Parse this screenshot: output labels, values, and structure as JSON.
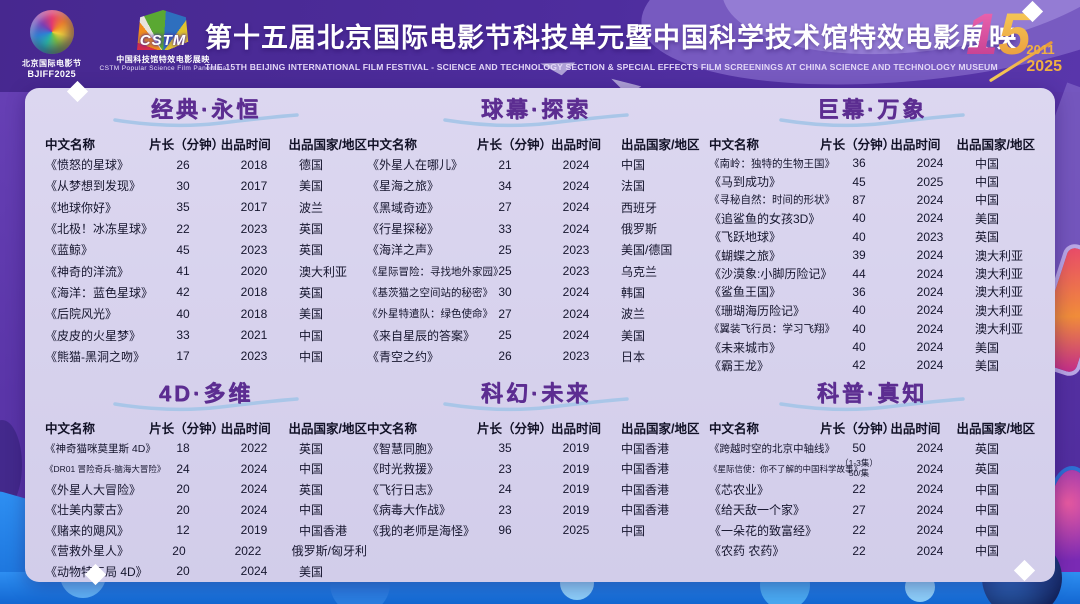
{
  "colors": {
    "background_purple": "#5a35a8",
    "header_purple": "#4e2d9e",
    "panel_lavender": "#d7d2ed",
    "section_title_purple": "#5c2d91",
    "bottom_blue": "#1b82e8",
    "badge_pink": "#d94a9c",
    "badge_gold": "#f0a93e"
  },
  "header": {
    "bjiff_logo": {
      "line1": "北京国际电影节",
      "line2": "BJIFF2025"
    },
    "cstm_logo": {
      "acronym": "CSTM",
      "line1": "中国科技馆特效电影展映",
      "line2": "CSTM Popular Science Film Panorama"
    },
    "title": "第十五届北京国际电影节科技单元暨中国科学技术馆特效电影展映",
    "subtitle": "THE 15TH BEIJING INTERNATIONAL FILM FESTIVAL - SCIENCE AND TECHNOLOGY SECTION & SPECIAL EFFECTS FILM SCREENINGS AT CHINA SCIENCE AND TECHNOLOGY MUSEUM",
    "badge": {
      "digit1": "1",
      "digit2": "5",
      "year_start": "2011",
      "year_end": "2025"
    }
  },
  "columns": [
    "中文名称",
    "片长（分钟）",
    "出品时间",
    "出品国家/地区"
  ],
  "sections": [
    {
      "title": "经典·永恒",
      "rows": [
        [
          "《愤怒的星球》",
          "26",
          "2018",
          "德国"
        ],
        [
          "《从梦想到发现》",
          "30",
          "2017",
          "美国"
        ],
        [
          "《地球你好》",
          "35",
          "2017",
          "波兰"
        ],
        [
          "《北极！冰冻星球》",
          "22",
          "2023",
          "英国"
        ],
        [
          "《蓝鲸》",
          "45",
          "2023",
          "英国"
        ],
        [
          "《神奇的洋流》",
          "41",
          "2020",
          "澳大利亚"
        ],
        [
          "《海洋：蓝色星球》",
          "42",
          "2018",
          "英国"
        ],
        [
          "《后院风光》",
          "40",
          "2018",
          "美国"
        ],
        [
          "《皮皮的火星梦》",
          "33",
          "2021",
          "中国"
        ],
        [
          "《熊猫-黑洞之吻》",
          "17",
          "2023",
          "中国"
        ]
      ]
    },
    {
      "title": "球幕·探索",
      "rows": [
        [
          "《外星人在哪儿》",
          "21",
          "2024",
          "中国"
        ],
        [
          "《星海之旅》",
          "34",
          "2024",
          "法国"
        ],
        [
          "《黑域奇迹》",
          "27",
          "2024",
          "西班牙"
        ],
        [
          "《行星探秘》",
          "33",
          "2024",
          "俄罗斯"
        ],
        [
          "《海洋之声》",
          "25",
          "2023",
          "美国/德国"
        ],
        [
          "《星际冒险：寻找地外家园》",
          "25",
          "2023",
          "乌克兰"
        ],
        [
          "《基茨猫之空间站的秘密》",
          "30",
          "2024",
          "韩国"
        ],
        [
          "《外星特遣队：绿色使命》",
          "27",
          "2024",
          "波兰"
        ],
        [
          "《来自星辰的答案》",
          "25",
          "2024",
          "美国"
        ],
        [
          "《青空之约》",
          "26",
          "2023",
          "日本"
        ]
      ]
    },
    {
      "title": "巨幕·万象",
      "rows": [
        [
          "《南岭：独特的生物王国》",
          "36",
          "2024",
          "中国"
        ],
        [
          "《马到成功》",
          "45",
          "2025",
          "中国"
        ],
        [
          "《寻秘自然：时间的形状》",
          "87",
          "2024",
          "中国"
        ],
        [
          "《追鲨鱼的女孩3D》",
          "40",
          "2024",
          "美国"
        ],
        [
          "《飞跃地球》",
          "40",
          "2023",
          "英国"
        ],
        [
          "《蝴蝶之旅》",
          "39",
          "2024",
          "澳大利亚"
        ],
        [
          "《沙漠象:小脚历险记》",
          "44",
          "2024",
          "澳大利亚"
        ],
        [
          "《鲨鱼王国》",
          "36",
          "2024",
          "澳大利亚"
        ],
        [
          "《珊瑚海历险记》",
          "40",
          "2024",
          "澳大利亚"
        ],
        [
          "《翼装飞行员：学习飞翔》",
          "40",
          "2024",
          "澳大利亚"
        ],
        [
          "《未来城市》",
          "40",
          "2024",
          "美国"
        ],
        [
          "《霸王龙》",
          "42",
          "2024",
          "美国"
        ]
      ]
    },
    {
      "title": "4D·多维",
      "rows": [
        [
          "《神奇猫咪莫里斯 4D》",
          "18",
          "2022",
          "英国"
        ],
        [
          "《DR01 冒险奇兵-脑海大冒险》",
          "24",
          "2024",
          "中国"
        ],
        [
          "《外星人大冒险》",
          "20",
          "2024",
          "英国"
        ],
        [
          "《壮美内蒙古》",
          "20",
          "2024",
          "中国"
        ],
        [
          "《赌来的飓风》",
          "12",
          "2019",
          "中国香港"
        ],
        [
          "《营救外星人》",
          "20",
          "2022",
          "俄罗斯/匈牙利"
        ],
        [
          "《动物特工局 4D》",
          "20",
          "2024",
          "美国"
        ]
      ]
    },
    {
      "title": "科幻·未来",
      "rows": [
        [
          "《智慧同胞》",
          "35",
          "2019",
          "中国香港"
        ],
        [
          "《时光救援》",
          "23",
          "2019",
          "中国香港"
        ],
        [
          "《飞行日志》",
          "24",
          "2019",
          "中国香港"
        ],
        [
          "《病毒大作战》",
          "23",
          "2019",
          "中国香港"
        ],
        [
          "《我的老师是海怪》",
          "96",
          "2025",
          "中国"
        ]
      ]
    },
    {
      "title": "科普·真知",
      "rows": [
        [
          "《跨越时空的北京中轴线》",
          "50",
          "2024",
          "英国"
        ],
        [
          "《星际信使：你不了解的中国科学故事》",
          "（1-3集）\n50/集",
          "2024",
          "英国"
        ],
        [
          "《芯农业》",
          "22",
          "2024",
          "中国"
        ],
        [
          "《给天敌一个家》",
          "27",
          "2024",
          "中国"
        ],
        [
          "《一朵花的致富经》",
          "22",
          "2024",
          "中国"
        ],
        [
          "《农药 农药》",
          "22",
          "2024",
          "中国"
        ]
      ]
    }
  ]
}
